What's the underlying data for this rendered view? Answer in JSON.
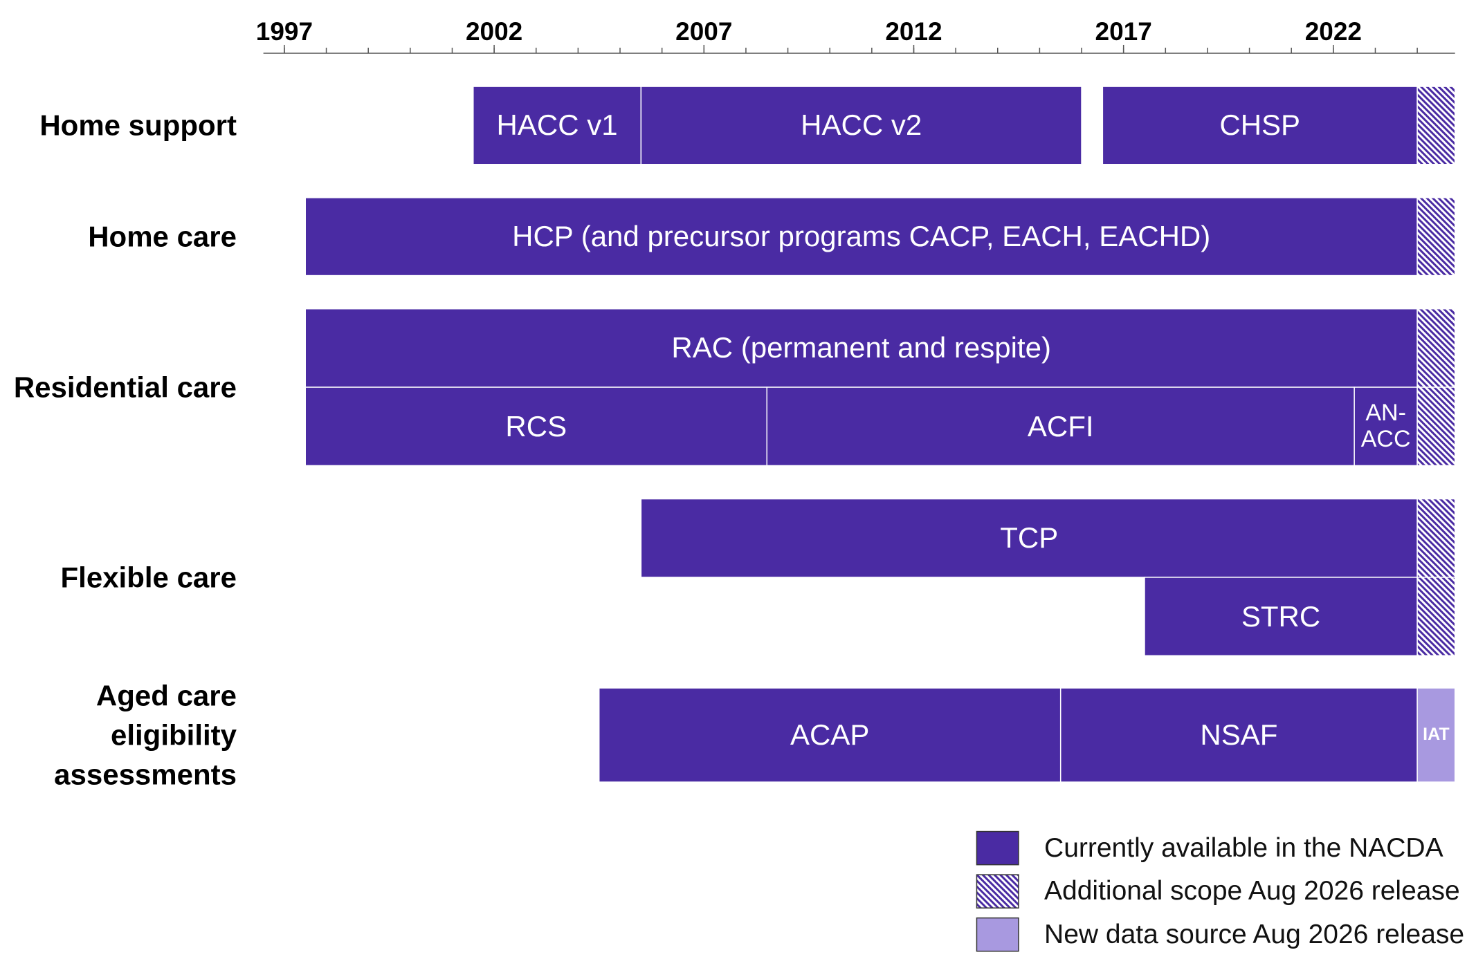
{
  "chart_data": {
    "type": "timeline",
    "xlim": [
      1996.5,
      2024.9
    ],
    "xticks": [
      1997,
      2002,
      2007,
      2012,
      2017,
      2022
    ],
    "xminor": [
      1997,
      1998,
      1999,
      2000,
      2001,
      2002,
      2003,
      2004,
      2005,
      2006,
      2007,
      2008,
      2009,
      2010,
      2011,
      2012,
      2013,
      2014,
      2015,
      2016,
      2017,
      2018,
      2019,
      2020,
      2021,
      2022,
      2023,
      2024
    ],
    "statuses": [
      {
        "key": "current",
        "name": "Currently available in the NACDA",
        "color": "#4a2ba3"
      },
      {
        "key": "additional",
        "name": "Additional scope Aug 2026 release",
        "color": "#4a2ba3",
        "hatch": true
      },
      {
        "key": "new",
        "name": "New data source Aug 2026 release",
        "color": "#a899e0"
      }
    ],
    "rows": [
      {
        "label": "Home support",
        "bars": [
          {
            "label": "HACC v1",
            "start": 2001.5,
            "end": 2005.5,
            "lane": 0,
            "status": "current"
          },
          {
            "label": "HACC v2",
            "start": 2005.5,
            "end": 2016,
            "lane": 0,
            "status": "current"
          },
          {
            "label": "CHSP",
            "start": 2016.5,
            "end": 2024,
            "lane": 0,
            "status": "current"
          },
          {
            "start": 2024,
            "end": 2024.9,
            "lane": 0,
            "status": "additional"
          }
        ]
      },
      {
        "label": "Home care",
        "bars": [
          {
            "label": "HCP (and precursor programs CACP, EACH, EACHD)",
            "start": 1997.5,
            "end": 2024,
            "lane": 0,
            "status": "current"
          },
          {
            "start": 2024,
            "end": 2024.9,
            "lane": 0,
            "status": "additional"
          }
        ]
      },
      {
        "label": "Residential care",
        "bars": [
          {
            "label": "RAC (permanent and respite)",
            "start": 1997.5,
            "end": 2024,
            "lane": 0,
            "status": "current"
          },
          {
            "start": 2024,
            "end": 2024.9,
            "lane": 0,
            "status": "additional"
          },
          {
            "label": "RCS",
            "start": 1997.5,
            "end": 2008.5,
            "lane": 1,
            "status": "current"
          },
          {
            "label": "ACFI",
            "start": 2008.5,
            "end": 2022.5,
            "lane": 1,
            "status": "current"
          },
          {
            "label": "AN-ACC",
            "start": 2022.5,
            "end": 2024,
            "lane": 1,
            "status": "current"
          },
          {
            "start": 2024,
            "end": 2024.9,
            "lane": 1,
            "status": "additional"
          }
        ]
      },
      {
        "label": "Flexible care",
        "bars": [
          {
            "label": "TCP",
            "start": 2005.5,
            "end": 2024,
            "lane": 0,
            "status": "current"
          },
          {
            "start": 2024,
            "end": 2024.9,
            "lane": 0,
            "status": "additional"
          },
          {
            "label": "STRC",
            "start": 2017.5,
            "end": 2024,
            "lane": 1,
            "status": "current"
          },
          {
            "start": 2024,
            "end": 2024.9,
            "lane": 1,
            "status": "additional"
          }
        ]
      },
      {
        "label": "Aged care eligibility assessments",
        "bars": [
          {
            "label": "ACAP",
            "start": 2004.5,
            "end": 2015.5,
            "lane": 0,
            "status": "current"
          },
          {
            "label": "NSAF",
            "start": 2015.5,
            "end": 2024,
            "lane": 0,
            "status": "current"
          },
          {
            "label": "IAT",
            "start": 2024,
            "end": 2024.9,
            "lane": 0,
            "status": "new"
          }
        ]
      }
    ]
  }
}
